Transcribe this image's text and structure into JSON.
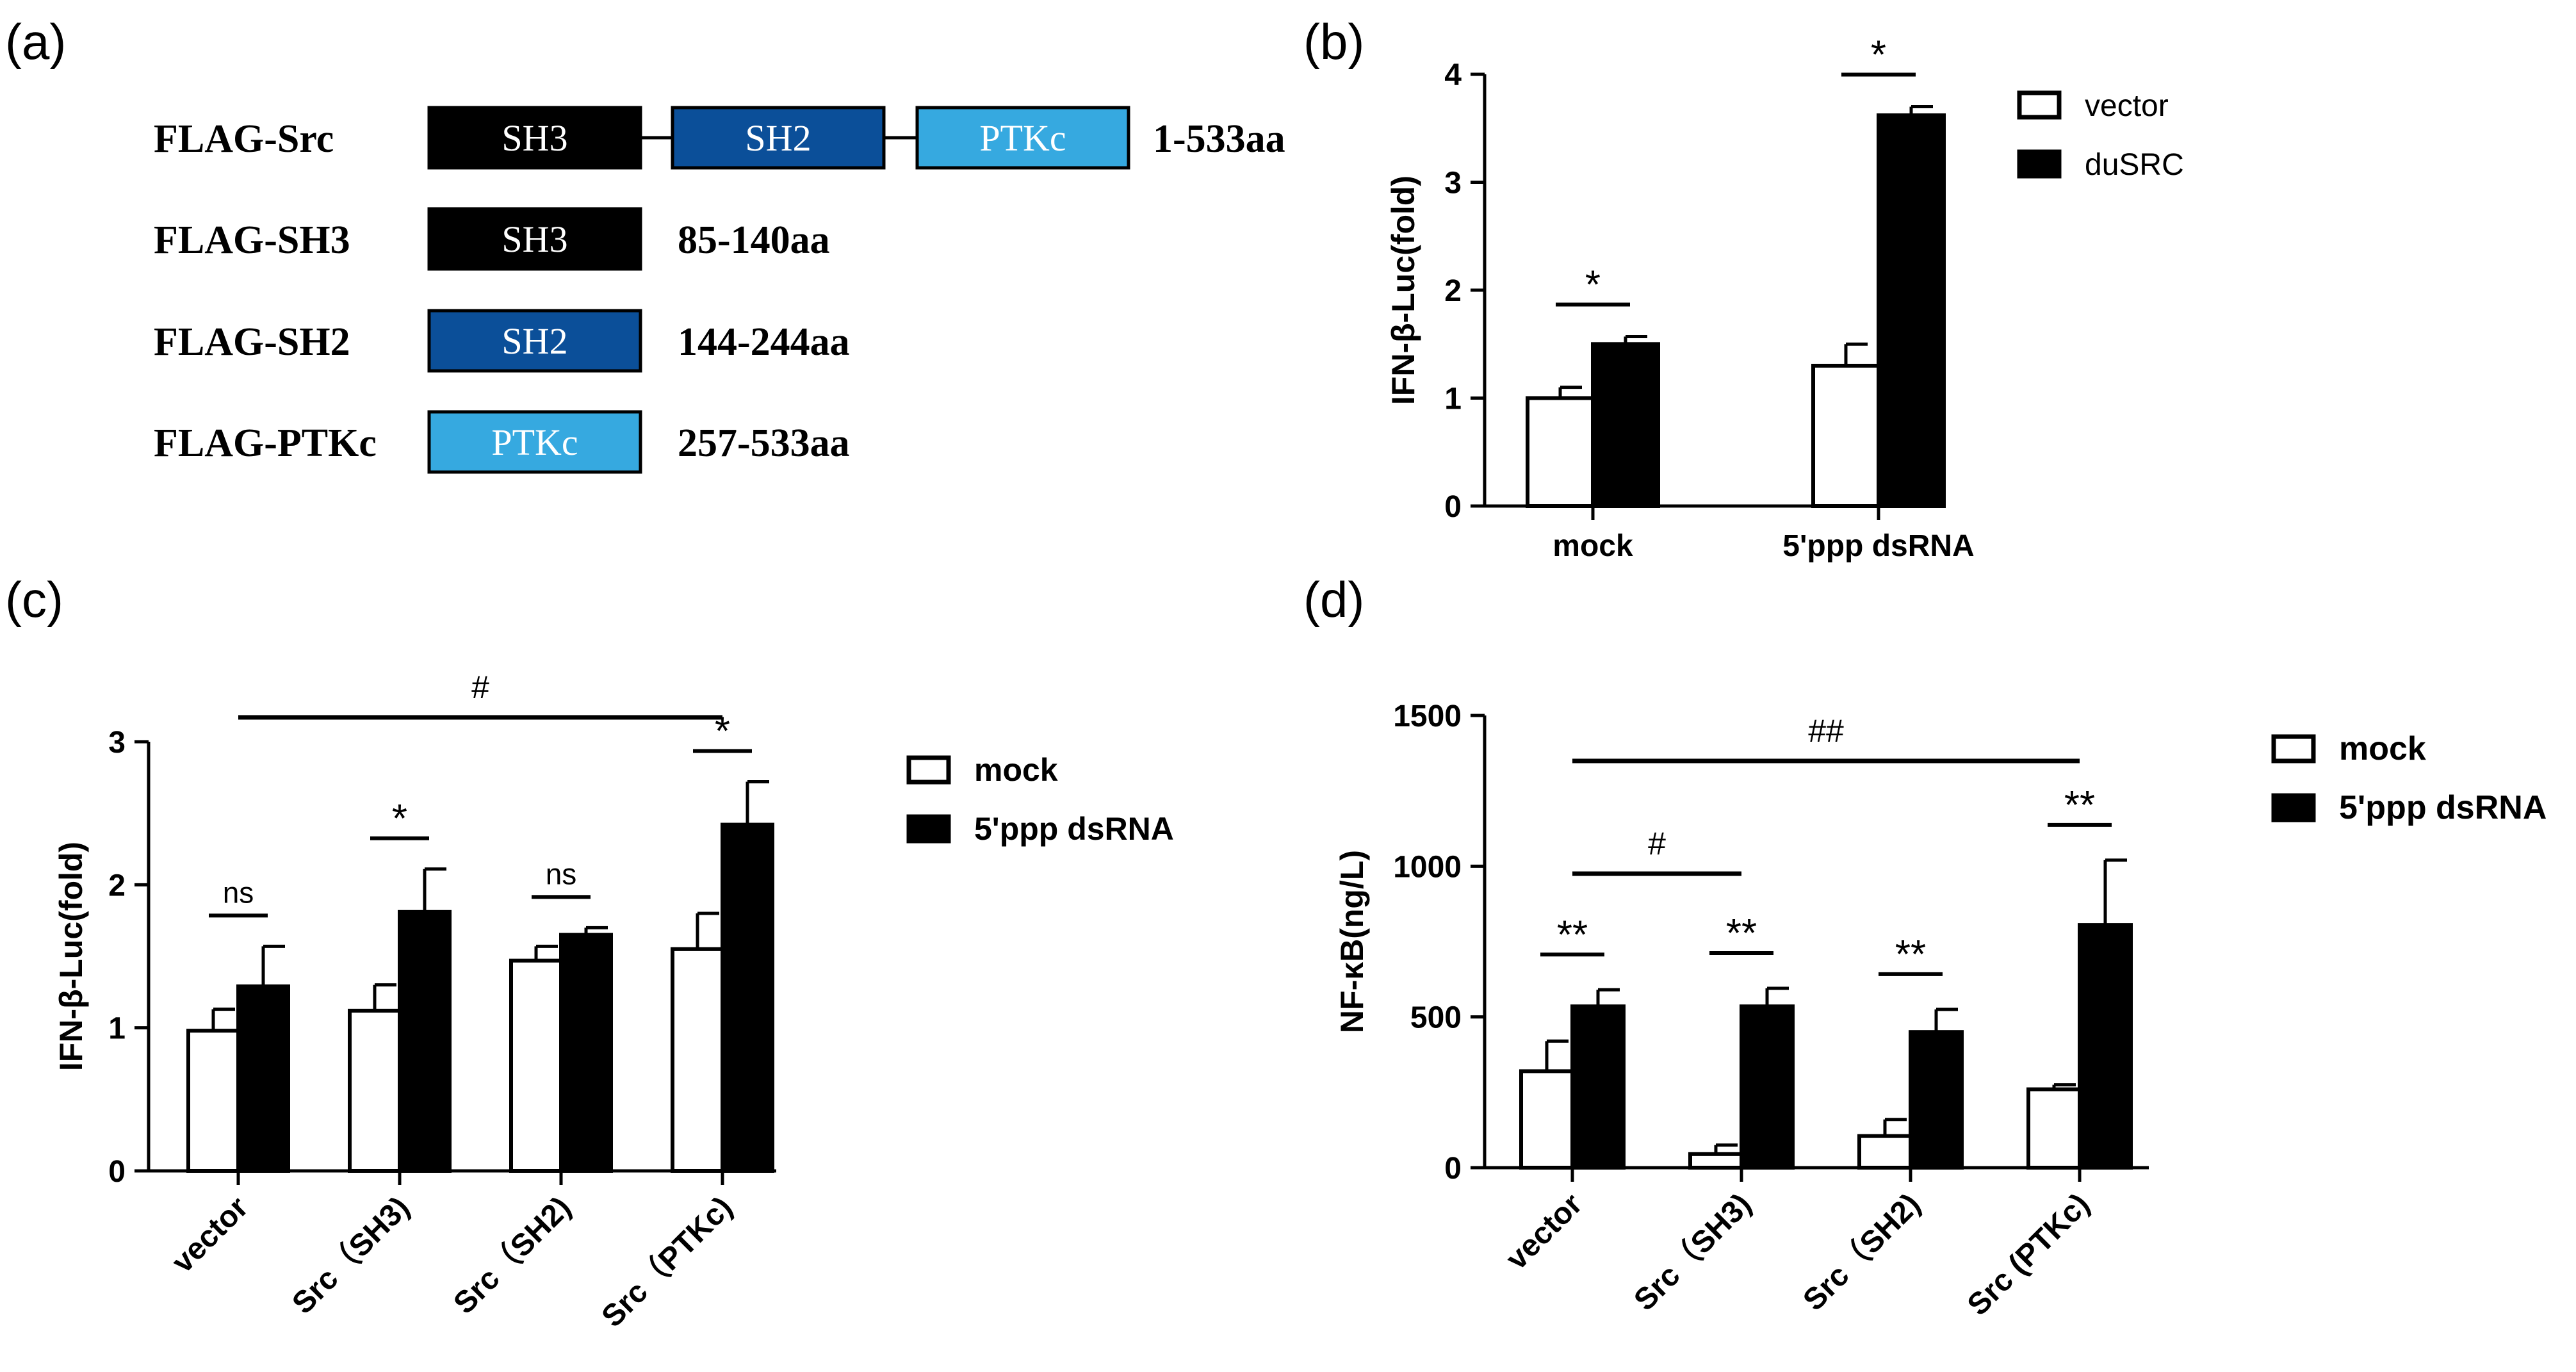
{
  "panel_labels": {
    "a": "(a)",
    "b": "(b)",
    "c": "(c)",
    "d": "(d)"
  },
  "colors": {
    "sh3": "#000000",
    "sh2": "#0b4f99",
    "ptkc": "#36a9e0",
    "bar_open": "#ffffff",
    "bar_filled": "#000000"
  },
  "constructs": [
    {
      "name": "FLAG-Src",
      "domains": [
        "SH3",
        "SH2",
        "PTKc"
      ],
      "range": "1-533aa"
    },
    {
      "name": "FLAG-SH3",
      "domains": [
        "SH3"
      ],
      "range": "85-140aa"
    },
    {
      "name": "FLAG-SH2",
      "domains": [
        "SH2"
      ],
      "range": "144-244aa"
    },
    {
      "name": "FLAG-PTKc",
      "domains": [
        "PTKc"
      ],
      "range": "257-533aa"
    }
  ],
  "chart_data": [
    {
      "panel": "b",
      "type": "bar",
      "ylabel": "IFN-β-Luc(fold)",
      "ylim": [
        0,
        4
      ],
      "yticks": [
        "0",
        "1",
        "2",
        "3",
        "4"
      ],
      "categories": [
        "mock",
        "5'ppp dsRNA"
      ],
      "series": [
        {
          "name": "vector",
          "values": [
            1.0,
            1.3
          ],
          "errors": [
            0.1,
            0.2
          ]
        },
        {
          "name": "duSRC",
          "values": [
            1.5,
            3.62
          ],
          "errors": [
            0.07,
            0.08
          ]
        }
      ],
      "significance": [
        {
          "group": 0,
          "label": "*"
        },
        {
          "group": 1,
          "label": "*"
        }
      ],
      "legend": "top-right"
    },
    {
      "panel": "c",
      "type": "bar",
      "ylabel": "IFN-β-Luc(fold)",
      "ylim": [
        0,
        3
      ],
      "yticks": [
        "0",
        "1",
        "2",
        "3"
      ],
      "categories": [
        "vector",
        "Src（SH3)",
        "Src（SH2)",
        "Src（PTKc)"
      ],
      "series": [
        {
          "name": "mock",
          "values": [
            0.98,
            1.12,
            1.47,
            1.55
          ],
          "errors": [
            0.15,
            0.18,
            0.1,
            0.25
          ]
        },
        {
          "name": "5'ppp dsRNA",
          "values": [
            1.29,
            1.81,
            1.65,
            2.42
          ],
          "errors": [
            0.28,
            0.3,
            0.05,
            0.3
          ]
        }
      ],
      "significance": [
        {
          "group": 0,
          "label": "ns"
        },
        {
          "group": 1,
          "label": "*"
        },
        {
          "group": 2,
          "label": "ns"
        },
        {
          "group": 3,
          "label": "*"
        }
      ],
      "comparisons": [
        {
          "from": 0,
          "to": 3,
          "label": "#"
        }
      ],
      "legend": "top-right"
    },
    {
      "panel": "d",
      "type": "bar",
      "ylabel": "NF-κB(ng/L)",
      "ylim": [
        0,
        1500
      ],
      "yticks": [
        "0",
        "500",
        "1000",
        "1500"
      ],
      "categories": [
        "vector",
        "Src（SH3)",
        "Src（SH2)",
        "Src (PTKc)"
      ],
      "series": [
        {
          "name": "mock",
          "values": [
            320,
            45,
            105,
            260
          ],
          "errors": [
            100,
            30,
            55,
            15
          ]
        },
        {
          "name": "5'ppp dsRNA",
          "values": [
            535,
            535,
            450,
            805
          ],
          "errors": [
            55,
            60,
            75,
            215
          ]
        }
      ],
      "significance": [
        {
          "group": 0,
          "label": "**"
        },
        {
          "group": 1,
          "label": "**"
        },
        {
          "group": 2,
          "label": "**"
        },
        {
          "group": 3,
          "label": "**"
        }
      ],
      "comparisons": [
        {
          "from": 0,
          "to": 1,
          "label": "#"
        },
        {
          "from": 0,
          "to": 3,
          "label": "##"
        }
      ],
      "legend": "top-right"
    }
  ]
}
